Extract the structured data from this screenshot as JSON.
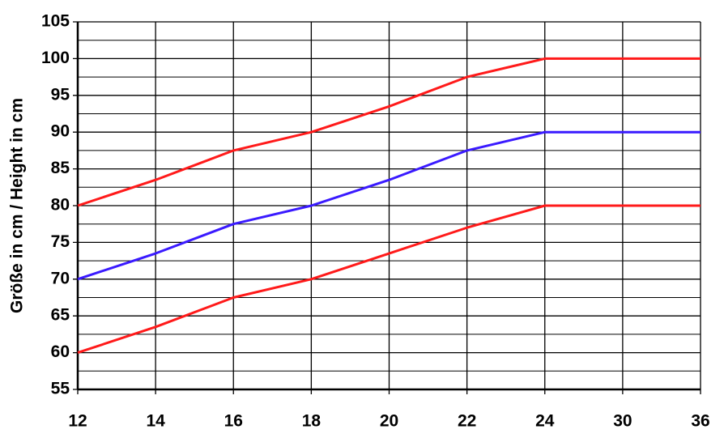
{
  "chart_data": {
    "type": "line",
    "y_label": "Größe in cm / Height in cm",
    "categories": [
      "12",
      "14",
      "16",
      "18",
      "20",
      "22",
      "24",
      "30",
      "36"
    ],
    "series": [
      {
        "color": "#ff1a1a",
        "values": [
          80,
          83.5,
          87.5,
          90,
          93.5,
          97.5,
          100,
          100,
          100
        ]
      },
      {
        "color": "#3a1aff",
        "values": [
          70,
          73.5,
          77.5,
          80,
          83.5,
          87.5,
          90,
          90,
          90
        ]
      },
      {
        "color": "#ff1a1a",
        "values": [
          60,
          63.5,
          67.5,
          70,
          73.5,
          77,
          80,
          80,
          80
        ]
      }
    ],
    "ylim": [
      55,
      105
    ],
    "yticks": [
      55,
      60,
      65,
      70,
      75,
      80,
      85,
      90,
      95,
      100,
      105
    ],
    "minor_yticks": [
      57.5,
      62.5,
      67.5,
      72.5,
      77.5,
      82.5,
      87.5,
      92.5,
      97.5,
      102.5
    ],
    "grid": true
  }
}
